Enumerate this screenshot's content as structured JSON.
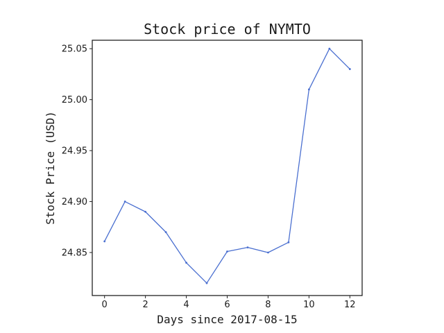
{
  "chart_data": {
    "type": "line",
    "title": "Stock price of NYMTO",
    "xlabel": "Days since 2017-08-15",
    "ylabel": "Stock Price (USD)",
    "x": [
      0,
      1,
      2,
      3,
      4,
      5,
      6,
      7,
      8,
      9,
      10,
      11,
      12
    ],
    "series": [
      {
        "values": [
          24.861,
          24.9,
          24.89,
          24.87,
          24.84,
          24.82,
          24.851,
          24.855,
          24.85,
          24.86,
          25.01,
          25.05,
          25.03
        ],
        "color": "#4a6fd0"
      }
    ],
    "xlim": [
      -0.6,
      12.6
    ],
    "ylim": [
      24.8078,
      25.0583
    ],
    "xticks": [
      0,
      2,
      4,
      6,
      8,
      10,
      12
    ],
    "xtick_labels": [
      "0",
      "2",
      "4",
      "6",
      "8",
      "10",
      "12"
    ],
    "yticks": [
      24.85,
      24.9,
      24.95,
      25.0,
      25.05
    ],
    "ytick_labels": [
      "24.85",
      "24.90",
      "24.95",
      "25.00",
      "25.05"
    ],
    "grid": false,
    "legend": "none"
  }
}
